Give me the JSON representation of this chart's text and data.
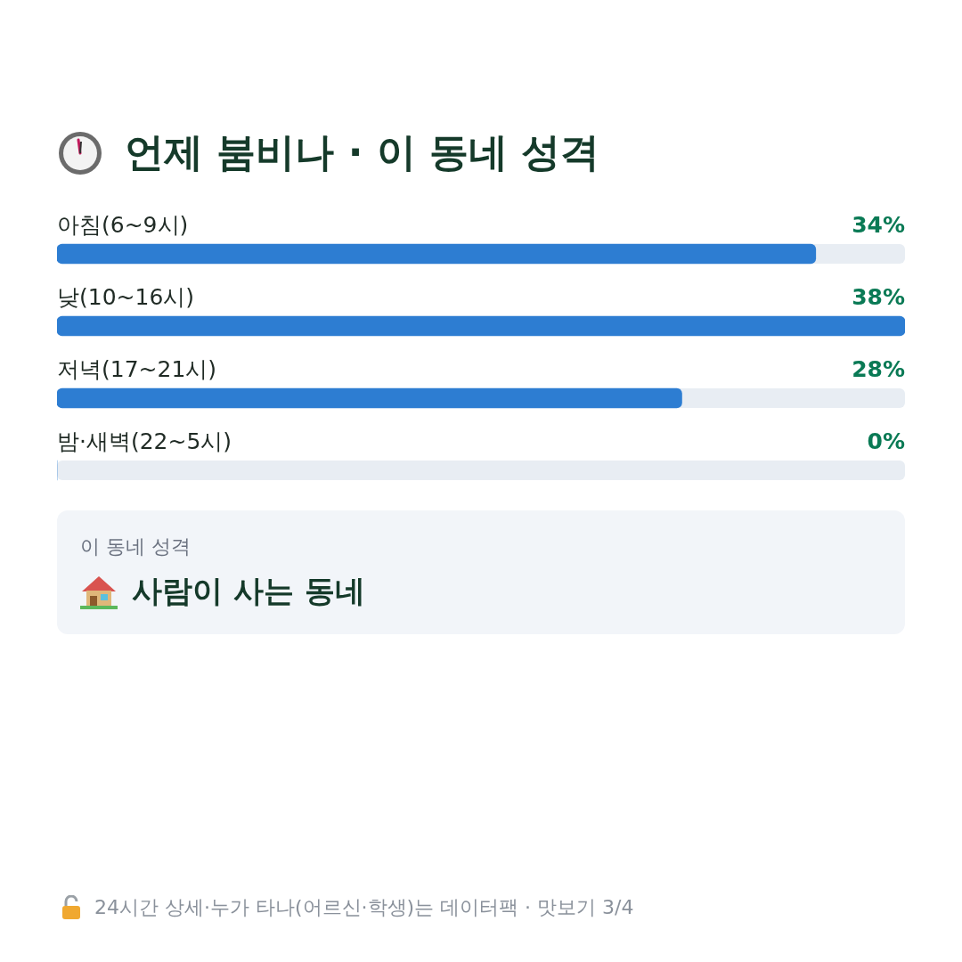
{
  "chart_data": {
    "type": "bar",
    "orientation": "horizontal",
    "title": "언제 붐비나 · 이 동네 성격",
    "categories": [
      "아침(6~9시)",
      "낮(10~16시)",
      "저녁(17~21시)",
      "밤·새벽(22~5시)"
    ],
    "values": [
      34,
      38,
      28,
      0
    ],
    "value_labels": [
      "34%",
      "38%",
      "28%",
      "0%"
    ],
    "color": "#2d7dd2",
    "annotations": [
      "이 동네 성격",
      "사람이 사는 동네",
      "24시간 상세·누가 타나(어르신·학생)는 데이터팩 · 맛보기 3/4"
    ]
  }
}
